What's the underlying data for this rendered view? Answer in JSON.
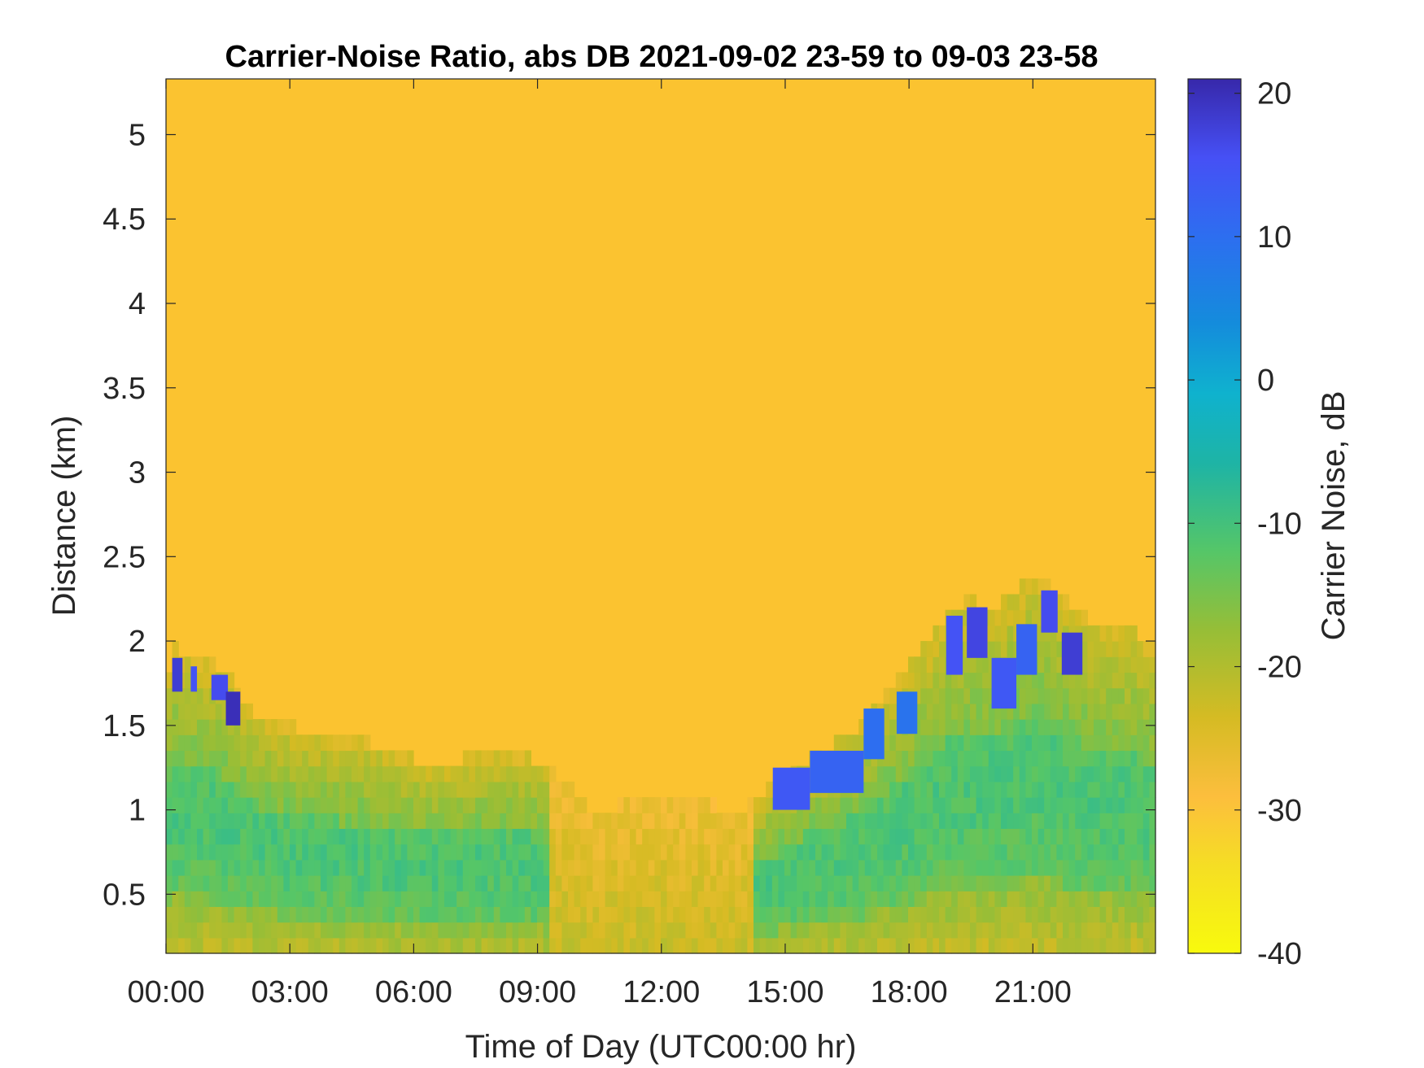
{
  "chart_data": {
    "type": "heatmap",
    "title": "Carrier-Noise Ratio, abs DB 2021-09-02 23-59 to 09-03 23-58",
    "xlabel": "Time of Day (UTC00:00 hr)",
    "ylabel": "Distance (km)",
    "colorbar_label": "Carrier Noise, dB",
    "x_unit": "hours",
    "xlim": [
      0,
      23.97
    ],
    "ylim": [
      0.15,
      5.33
    ],
    "clim": [
      -40,
      21
    ],
    "x_ticks": [
      0,
      3,
      6,
      9,
      12,
      15,
      18,
      21
    ],
    "x_tick_labels": [
      "00:00",
      "03:00",
      "06:00",
      "09:00",
      "12:00",
      "15:00",
      "18:00",
      "21:00"
    ],
    "y_ticks": [
      0.5,
      1,
      1.5,
      2,
      2.5,
      3,
      3.5,
      4,
      4.5,
      5
    ],
    "y_tick_labels": [
      "0.5",
      "1",
      "1.5",
      "2",
      "2.5",
      "3",
      "3.5",
      "4",
      "4.5",
      "5"
    ],
    "colorbar_ticks": [
      -40,
      -30,
      -20,
      -10,
      0,
      10,
      20
    ],
    "colorbar_tick_labels": [
      "-40",
      "-30",
      "-20",
      "-10",
      "0",
      "10",
      "20"
    ],
    "colormap": "parula",
    "background_value_db": -32,
    "boundary_layer_top_km": {
      "hours": [
        0.0,
        0.25,
        0.5,
        1.0,
        1.5,
        2.0,
        2.5,
        3.0,
        4.0,
        5.0,
        6.0,
        7.0,
        8.0,
        9.0,
        9.5,
        10.0,
        10.5,
        11.0,
        11.5,
        12.0,
        12.5,
        13.0,
        13.5,
        14.0,
        14.5,
        15.0,
        15.5,
        16.0,
        16.5,
        17.0,
        17.5,
        18.0,
        18.5,
        19.0,
        19.5,
        20.0,
        20.5,
        21.0,
        21.5,
        22.0,
        22.5,
        23.0,
        23.5,
        23.97
      ],
      "top_km": [
        1.8,
        2.0,
        1.9,
        1.9,
        1.8,
        1.6,
        1.55,
        1.5,
        1.45,
        1.4,
        1.3,
        1.3,
        1.35,
        1.3,
        1.2,
        1.1,
        0.95,
        1.05,
        1.1,
        1.1,
        1.05,
        1.05,
        1.02,
        1.0,
        1.1,
        1.2,
        1.3,
        1.35,
        1.45,
        1.55,
        1.7,
        1.85,
        2.0,
        2.2,
        2.25,
        2.2,
        2.3,
        2.4,
        2.3,
        2.2,
        2.1,
        2.1,
        2.05,
        1.95
      ]
    },
    "high_signal_patches": [
      {
        "x0": 0.15,
        "x1": 0.4,
        "y0": 1.7,
        "y1": 1.9,
        "value_db": 18
      },
      {
        "x0": 0.6,
        "x1": 0.75,
        "y0": 1.7,
        "y1": 1.85,
        "value_db": 15
      },
      {
        "x0": 1.1,
        "x1": 1.5,
        "y0": 1.65,
        "y1": 1.8,
        "value_db": 16
      },
      {
        "x0": 1.45,
        "x1": 1.8,
        "y0": 1.5,
        "y1": 1.7,
        "value_db": 20
      },
      {
        "x0": 14.7,
        "x1": 15.6,
        "y0": 1.0,
        "y1": 1.25,
        "value_db": 14
      },
      {
        "x0": 15.6,
        "x1": 16.9,
        "y0": 1.1,
        "y1": 1.35,
        "value_db": 12
      },
      {
        "x0": 16.9,
        "x1": 17.4,
        "y0": 1.3,
        "y1": 1.6,
        "value_db": 10
      },
      {
        "x0": 17.7,
        "x1": 18.2,
        "y0": 1.45,
        "y1": 1.7,
        "value_db": 9
      },
      {
        "x0": 18.9,
        "x1": 19.3,
        "y0": 1.8,
        "y1": 2.15,
        "value_db": 15
      },
      {
        "x0": 19.4,
        "x1": 19.9,
        "y0": 1.9,
        "y1": 2.2,
        "value_db": 17
      },
      {
        "x0": 20.0,
        "x1": 20.6,
        "y0": 1.6,
        "y1": 1.9,
        "value_db": 14
      },
      {
        "x0": 20.6,
        "x1": 21.1,
        "y0": 1.8,
        "y1": 2.1,
        "value_db": 12
      },
      {
        "x0": 21.2,
        "x1": 21.6,
        "y0": 2.05,
        "y1": 2.3,
        "value_db": 16
      },
      {
        "x0": 21.7,
        "x1": 22.2,
        "y0": 1.8,
        "y1": 2.05,
        "value_db": 18
      }
    ],
    "grid": false,
    "legend": "none"
  }
}
